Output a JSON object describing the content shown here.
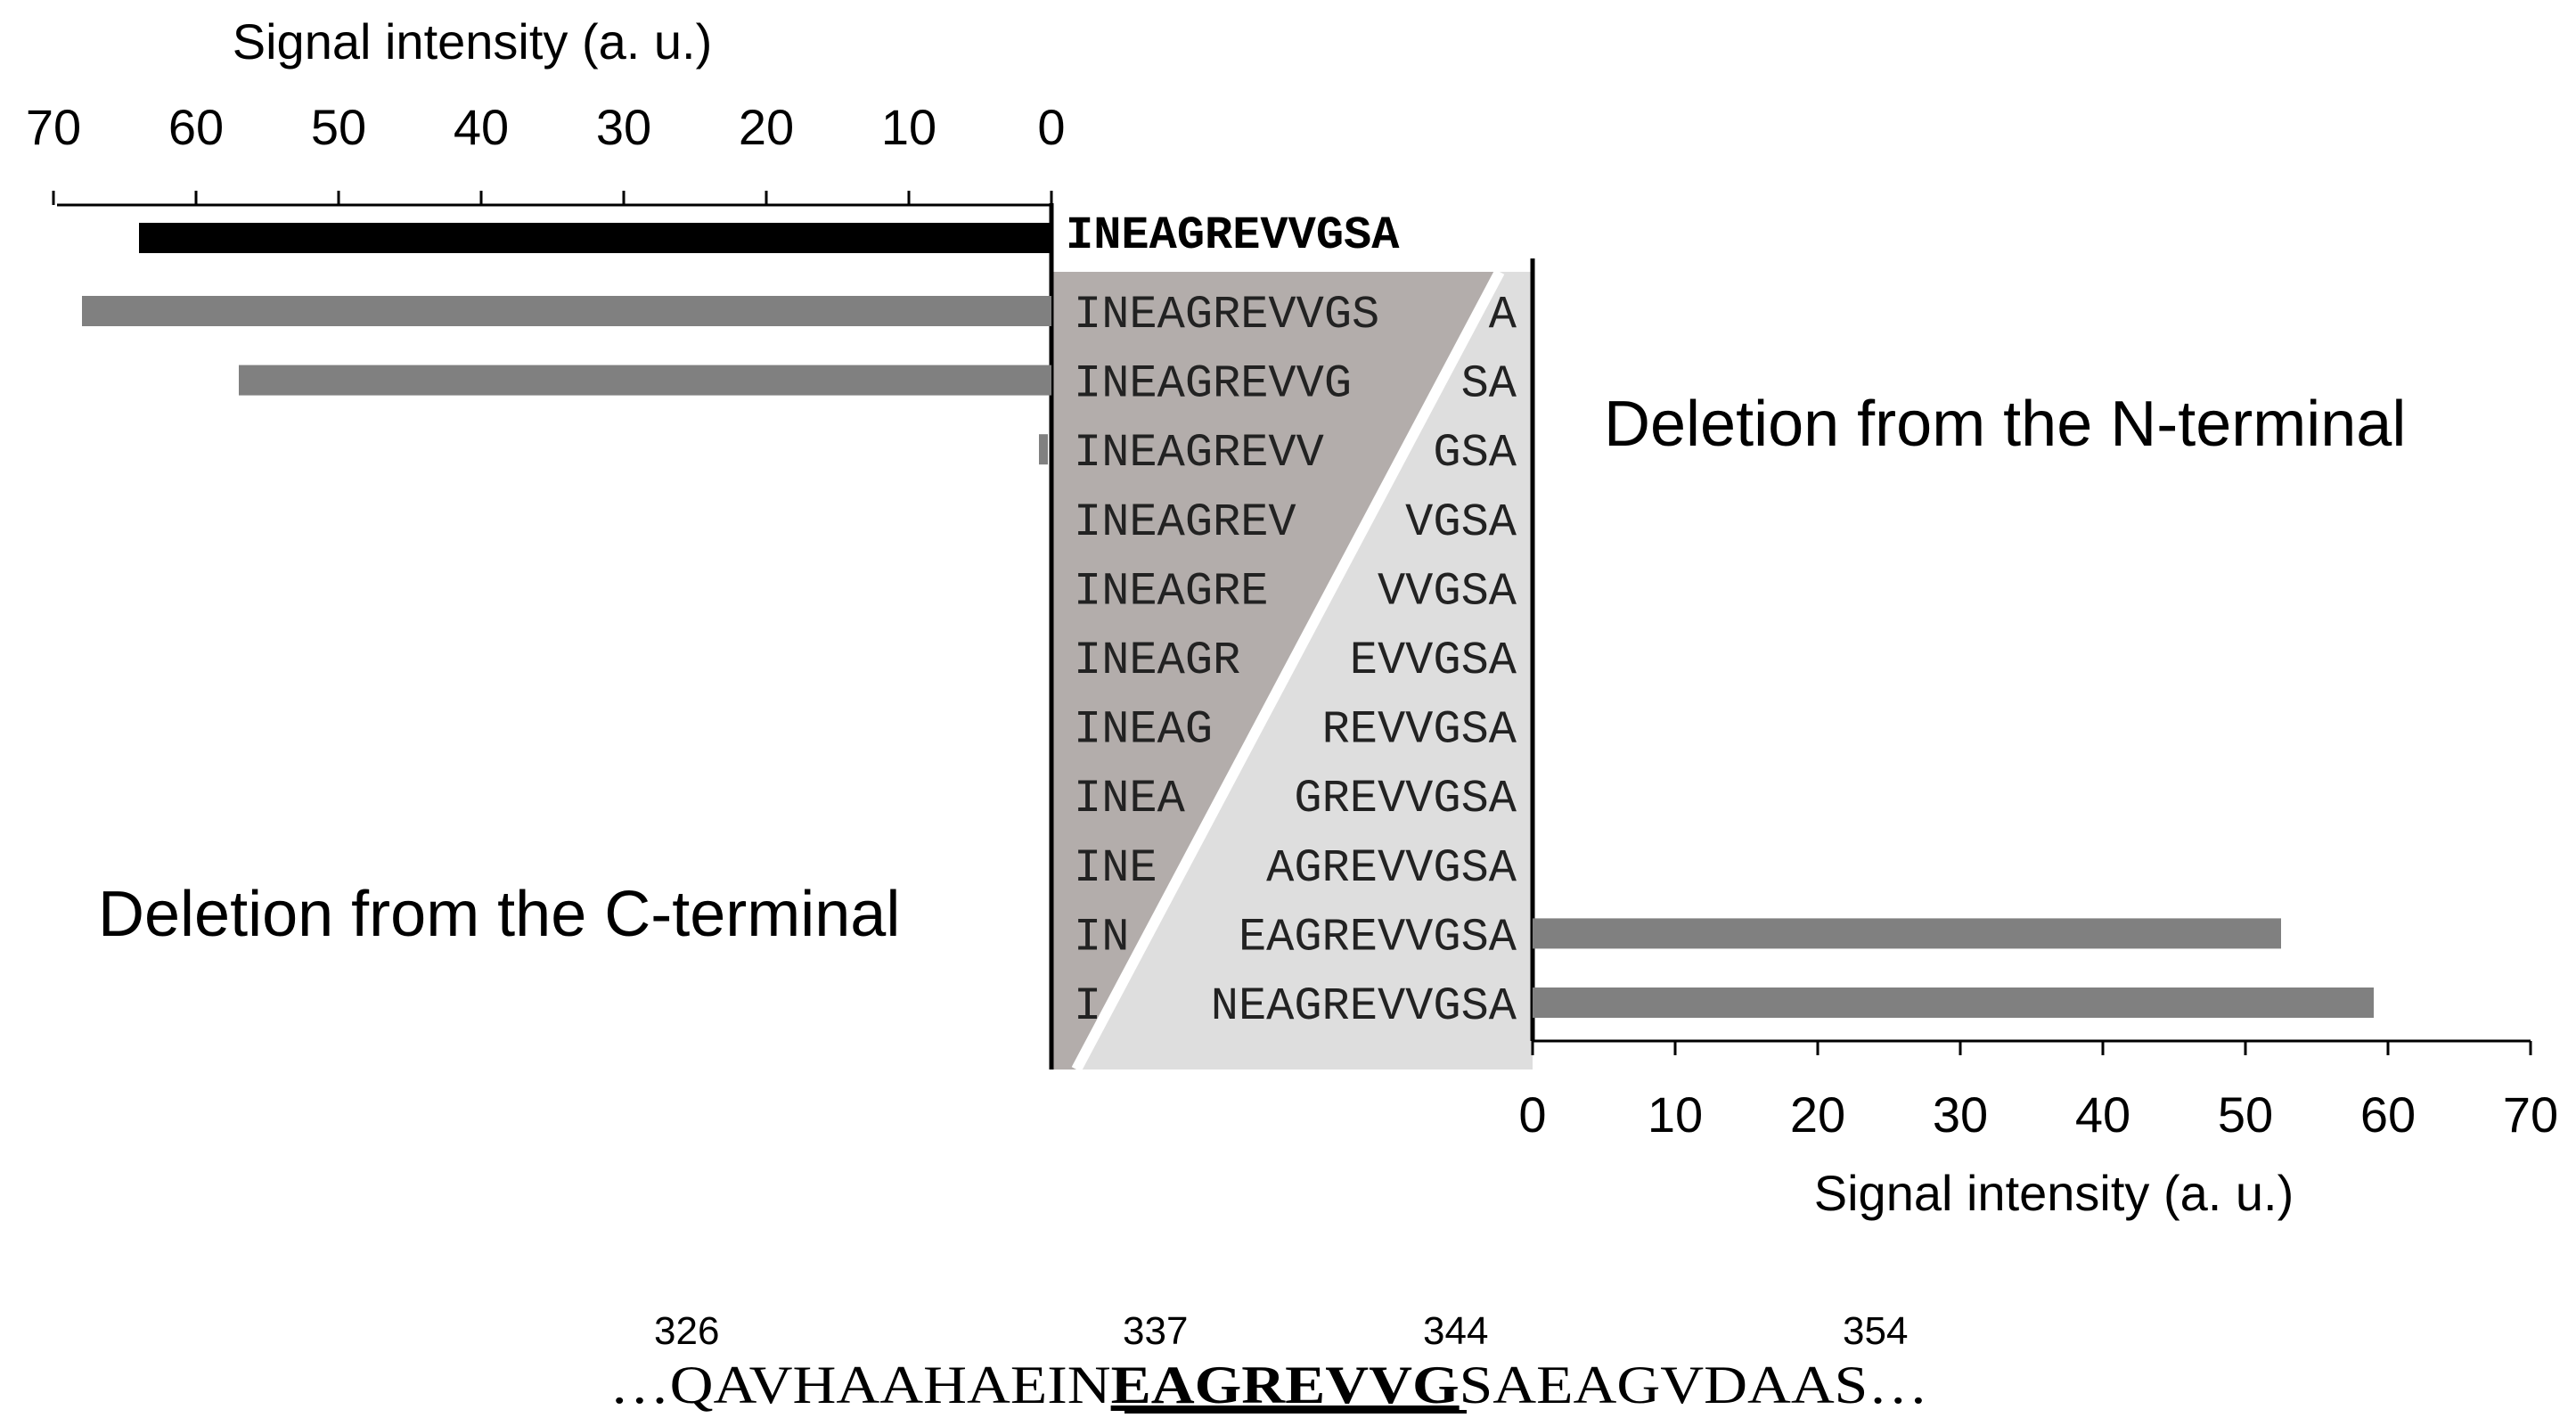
{
  "chart_data": [
    {
      "type": "bar",
      "orientation": "horizontal",
      "direction": "leftward",
      "title": "Deletion from the C-terminal",
      "xlabel": "Signal intensity (a. u.)",
      "xlim": [
        0,
        70
      ],
      "ticks": [
        0,
        10,
        20,
        30,
        40,
        50,
        60,
        70
      ],
      "axis_position": "top",
      "reference": {
        "sequence": "INEAGREVVGSA",
        "value": 64,
        "color": "#000000"
      },
      "categories": [
        "INEAGREVVGS",
        "INEAGREVVG",
        "INEAGREVV",
        "INEAGREV",
        "INEAGRE",
        "INEAGR",
        "INEAG",
        "INEA",
        "INE",
        "IN",
        "I"
      ],
      "values": [
        68,
        57,
        0.5,
        0,
        0,
        0,
        0,
        0,
        0,
        0,
        0
      ],
      "bar_color": "#808080"
    },
    {
      "type": "bar",
      "orientation": "horizontal",
      "direction": "rightward",
      "title": "Deletion from the N-terminal",
      "xlabel": "Signal intensity (a. u.)",
      "xlim": [
        0,
        70
      ],
      "ticks": [
        0,
        10,
        20,
        30,
        40,
        50,
        60,
        70
      ],
      "axis_position": "bottom",
      "categories": [
        "A",
        "SA",
        "GSA",
        "VGSA",
        "VVGSA",
        "EVVGSA",
        "REVVGSA",
        "GREVVGSA",
        "AGREVVGSA",
        "EAGREVVGSA",
        "NEAGREVVGSA"
      ],
      "values": [
        0,
        0,
        0,
        0,
        0,
        0,
        0,
        0,
        0,
        52.5,
        59
      ],
      "bar_color": "#808080"
    }
  ],
  "peptides": {
    "reference": "INEAGREVVGSA",
    "rows": [
      {
        "c_part": "INEAGREVVGS",
        "n_part": "A"
      },
      {
        "c_part": "INEAGREVVG",
        "n_part": "SA"
      },
      {
        "c_part": "INEAGREVV",
        "n_part": "GSA"
      },
      {
        "c_part": "INEAGREV",
        "n_part": "VGSA"
      },
      {
        "c_part": "INEAGRE",
        "n_part": "VVGSA"
      },
      {
        "c_part": "INEAGR",
        "n_part": "EVVGSA"
      },
      {
        "c_part": "INEAG",
        "n_part": "REVVGSA"
      },
      {
        "c_part": "INEA",
        "n_part": "GREVVGSA"
      },
      {
        "c_part": "INE",
        "n_part": "AGREVVGSA"
      },
      {
        "c_part": "IN",
        "n_part": "EAGREVVGSA"
      },
      {
        "c_part": "I",
        "n_part": "NEAGREVVGSA"
      }
    ]
  },
  "protein_sequence": {
    "prefix": "…",
    "before": "QAVHAAHAEIN",
    "epitope": "EAGREVVG",
    "after": "SAEAGVDAAS",
    "suffix": "…",
    "position_labels": [
      "326",
      "337",
      "344",
      "354"
    ]
  },
  "colors": {
    "reference_bar": "#000000",
    "data_bar": "#808080",
    "c_triangle": "#b3adab",
    "n_triangle": "#dedede",
    "axis": "#000000"
  }
}
